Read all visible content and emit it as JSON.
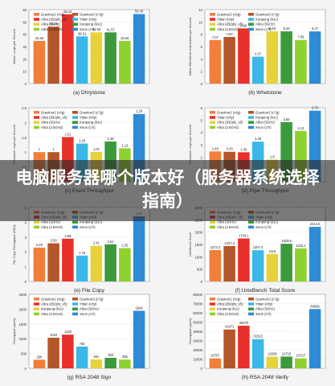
{
  "banner": {
    "title": "电脑服务器哪个版本好（服务器系统选择指南）"
  },
  "colors": [
    "#f07f3c",
    "#b5562a",
    "#e8312a",
    "#3cb8e6",
    "#e8d23c",
    "#3c9a3c",
    "#8fd12f",
    "#2e8bd8"
  ],
  "chart_data": [
    {
      "type": "bar",
      "caption": "(a) Dhrystone",
      "ylabel": "Million Loops per Second",
      "ylim": [
        0,
        60
      ],
      "yticks": [
        0,
        10,
        20,
        30,
        40,
        50,
        60
      ],
      "legend_position": "top-left",
      "series": [
        {
          "name": "Graviton2 (c6g)",
          "value": 34.66
        },
        {
          "name": "Graviton3 (c7g)",
          "value": 46.24
        },
        {
          "name": "Altra (d32pls_v5)",
          "value": 56.24
        },
        {
          "name": "Yitian (c8y)",
          "value": 38.31
        },
        {
          "name": "Altra (3GHz)",
          "value": 41.59
        },
        {
          "name": "Kunpeng (k1c)",
          "value": 41.57
        },
        {
          "name": "Altra (2.5GHz)",
          "value": 34.66
        },
        {
          "name": "Xeon (c7i)",
          "value": 56.43
        }
      ]
    },
    {
      "type": "bar",
      "caption": "(b) Whetstone",
      "ylabel": "Billion Whetstone Instructions per Second",
      "ylim": [
        0,
        12
      ],
      "yticks": [
        0,
        2,
        4,
        6,
        8,
        10,
        12
      ],
      "legend_position": "top-left",
      "series": [
        {
          "name": "Graviton2 (c6g)",
          "value": 7.07
        },
        {
          "name": "Graviton3 (c7g)",
          "value": 7.57
        },
        {
          "name": "Yitian (c8y)",
          "value": 8.96
        },
        {
          "name": "Kunpeng (k1c)",
          "value": 4.37
        },
        {
          "name": "Altra (d32pls_v5)",
          "value": 8.49
        },
        {
          "name": "Altra (3GHz)",
          "value": 8.49
        },
        {
          "name": "Altra (2.5GHz)",
          "value": 7.08
        },
        {
          "name": "Xeon (c7i)",
          "value": 8.47
        }
      ]
    },
    {
      "type": "bar",
      "caption": "(c) Execl Throughput",
      "ylabel": "Thousand Loops per Second",
      "ylim": [
        0,
        2.5
      ],
      "yticks": [
        0,
        0.5,
        1,
        1.5,
        2,
        2.5
      ],
      "legend_position": "top-left",
      "series": [
        {
          "name": "Graviton2 (c6g)",
          "value": 1.0
        },
        {
          "name": "Graviton3 (c7g)",
          "value": 1.0
        },
        {
          "name": "Altra (d32pls_v5)",
          "value": 1.51
        },
        {
          "name": "Yitian (c8y)",
          "value": 1.29
        },
        {
          "name": "Altra (3GHz)",
          "value": 1.01
        },
        {
          "name": "Kunpeng (k1c)",
          "value": 1.36
        },
        {
          "name": "Altra (2.5GHz)",
          "value": 1.13
        },
        {
          "name": "Xeon (c7i)",
          "value": 2.29
        }
      ]
    },
    {
      "type": "bar",
      "caption": "(d) Pipe Throughput",
      "ylabel": "Thousand Loops per Second",
      "ylim": [
        0,
        6
      ],
      "yticks": [
        0,
        1,
        2,
        3,
        4,
        5,
        6
      ],
      "legend_position": "top-left",
      "series": [
        {
          "name": "Graviton2 (c6g)",
          "value": 2.46
        },
        {
          "name": "Graviton3 (c7g)",
          "value": 2.43
        },
        {
          "name": "Yitian (c8y)",
          "value": 2.39
        },
        {
          "name": "Kunpeng (k1c)",
          "value": 3.25
        },
        {
          "name": "Altra (d32pls_v5)",
          "value": 1.8
        },
        {
          "name": "Altra (3GHz)",
          "value": 4.84
        },
        {
          "name": "Altra (2.5GHz)",
          "value": 4.12
        },
        {
          "name": "Xeon (c7i)",
          "value": 5.76
        }
      ]
    },
    {
      "type": "bar",
      "caption": "(e) File Copy",
      "ylabel": "File Copy Throughput (GB/s)",
      "ylim": [
        0,
        5
      ],
      "yticks": [
        0,
        1,
        2,
        3,
        4,
        5
      ],
      "legend_position": "top-left",
      "series": [
        {
          "name": "Graviton2 (c6g)",
          "value": 2.29
        },
        {
          "name": "Graviton3 (c7g)",
          "value": 2.58
        },
        {
          "name": "Altra (d32pls_v5)",
          "value": 2.89
        },
        {
          "name": "Yitian (c8y)",
          "value": 1.75
        },
        {
          "name": "Altra (3GHz)",
          "value": 2.41
        },
        {
          "name": "Kunpeng (k1c)",
          "value": 2.51
        },
        {
          "name": "Altra (2.5GHz)",
          "value": 2.25
        },
        {
          "name": "Xeon (c7i)",
          "value": 4.4
        }
      ]
    },
    {
      "type": "bar",
      "caption": "(f) UnixBench Total Score",
      "ylabel": "UnixBench Score",
      "ylim": [
        0,
        3000
      ],
      "yticks": [
        0,
        500,
        1000,
        1500,
        2000,
        2500,
        3000
      ],
      "legend_position": "top-left",
      "series": [
        {
          "name": "Graviton2 (c6g)",
          "value": 1272.3
        },
        {
          "name": "Graviton3 (c7g)",
          "value": 1437.3
        },
        {
          "name": "Altra (d32pls_v5)",
          "value": 1744.1
        },
        {
          "name": "Yitian (c8y)",
          "value": 1267.4
        },
        {
          "name": "Altra (3GHz)",
          "value": 1116.0
        },
        {
          "name": "Kunpeng (k1c)",
          "value": 1529.5
        },
        {
          "name": "Altra (2.5GHz)",
          "value": 1342.1
        },
        {
          "name": "Xeon (c7i)",
          "value": 2214.5
        }
      ]
    },
    {
      "type": "bar",
      "caption": "(g) RSA 2048 Sign",
      "ylabel": "Throughput (ops/s)",
      "ylim": [
        0,
        2500
      ],
      "yticks": [
        0,
        500,
        1000,
        1500,
        2000,
        2500
      ],
      "legend_position": "top-left",
      "series": [
        {
          "name": "Graviton2 (c6g)",
          "value": 290
        },
        {
          "name": "Graviton3 (c7g)",
          "value": 1034
        },
        {
          "name": "Altra (d32pls_v5)",
          "value": 1138
        },
        {
          "name": "Yitian (c8y)",
          "value": 736
        },
        {
          "name": "Kunpeng (k1c)",
          "value": 301
        },
        {
          "name": "Altra (3GHz)",
          "value": 353
        },
        {
          "name": "Altra (2.5GHz)",
          "value": 295
        },
        {
          "name": "Xeon (c7i)",
          "value": 1944
        }
      ]
    },
    {
      "type": "bar",
      "caption": "(h) RSA 2048 Verify",
      "ylabel": "Throughput (ops/s)",
      "ylim": [
        0,
        80000
      ],
      "yticks": [
        0,
        10000,
        20000,
        30000,
        40000,
        50000,
        60000,
        70000,
        80000
      ],
      "legend_position": "top-left",
      "series": [
        {
          "name": "Graviton2 (c6g)",
          "value": 10707
        },
        {
          "name": "Graviton3 (c7g)",
          "value": 41971
        },
        {
          "name": "Altra (d32pls_v5)",
          "value": 46070
        },
        {
          "name": "Yitian (c8y)",
          "value": 31523
        },
        {
          "name": "Kunpeng (k1c)",
          "value": 12639
        },
        {
          "name": "Altra (3GHz)",
          "value": 12715
        },
        {
          "name": "Altra (2.5GHz)",
          "value": 10727
        },
        {
          "name": "Xeon (c7i)",
          "value": 64066
        }
      ]
    }
  ]
}
